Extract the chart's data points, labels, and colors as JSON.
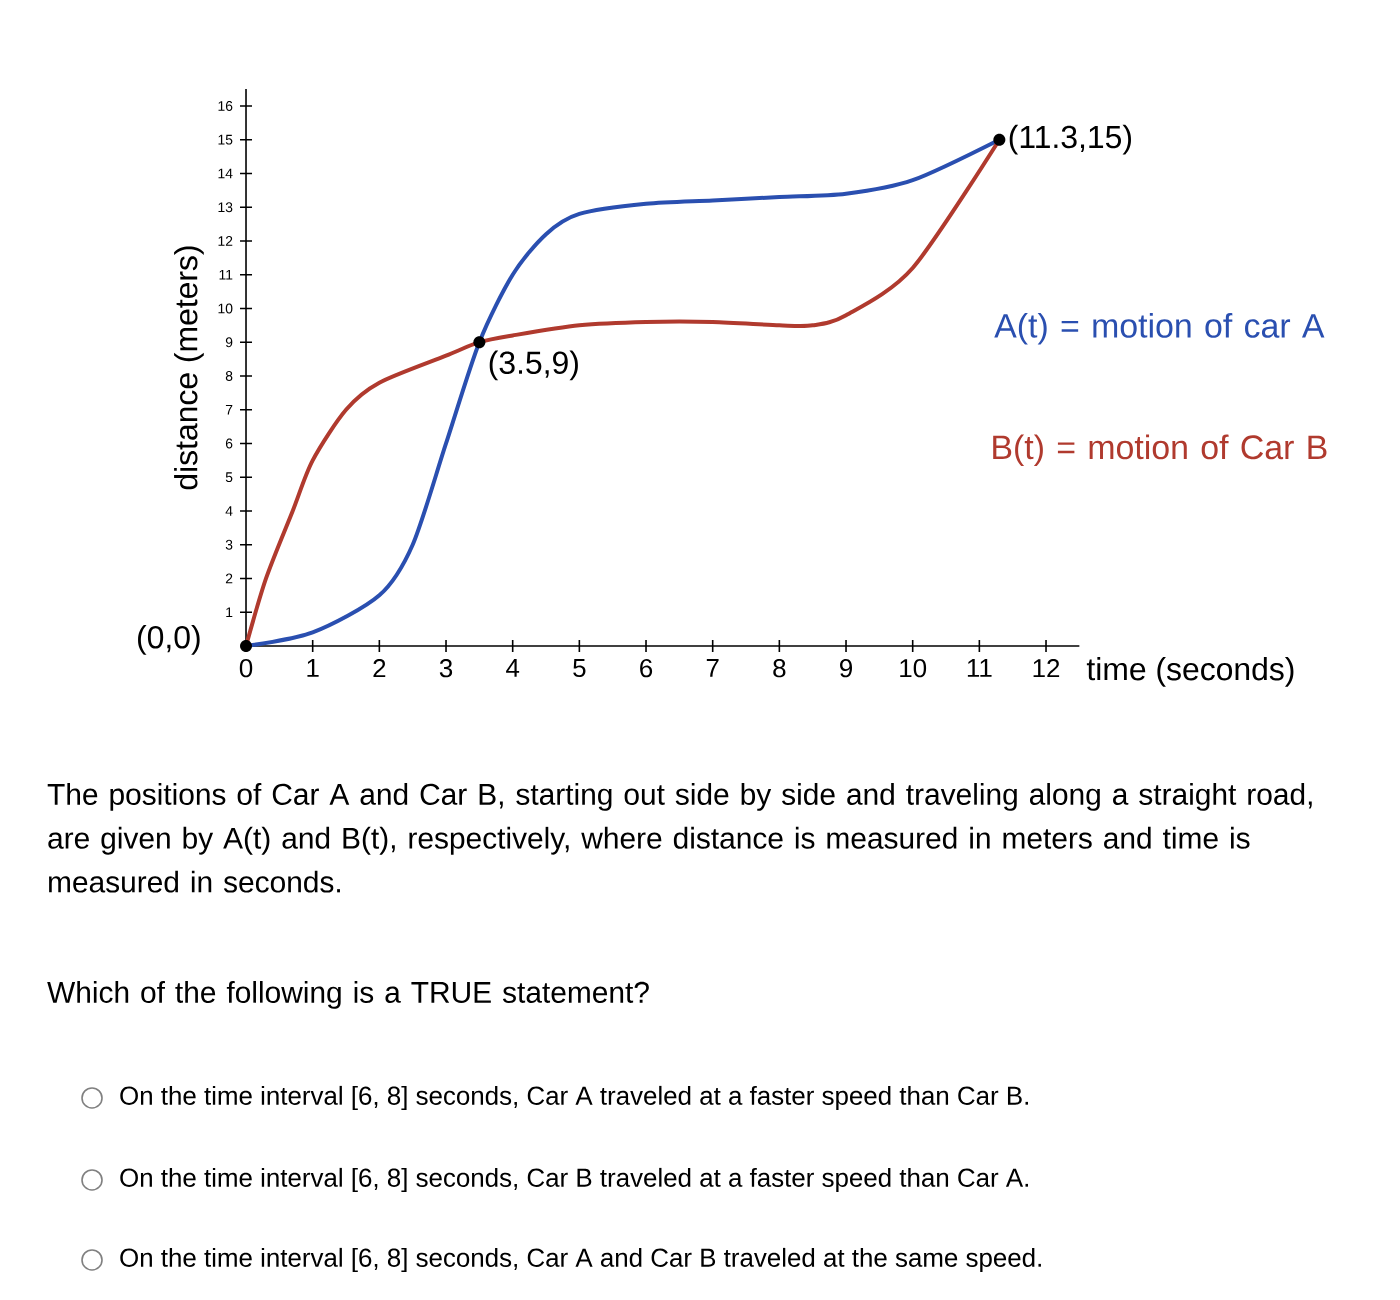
{
  "chart_data": {
    "type": "line",
    "xlabel": "time (seconds)",
    "ylabel": "distance (meters)",
    "xlim": [
      0,
      12.5
    ],
    "ylim": [
      0,
      16.5
    ],
    "xticks": [
      0,
      1,
      2,
      3,
      4,
      5,
      6,
      7,
      8,
      9,
      10,
      11,
      12
    ],
    "yticks": [
      1,
      2,
      3,
      4,
      5,
      6,
      7,
      8,
      9,
      10,
      11,
      12,
      13,
      14,
      15,
      16
    ],
    "marker": "none",
    "series": [
      {
        "name": "A(t) = motion of car A",
        "color": "#2a4fb0",
        "x": [
          0,
          1,
          2,
          2.5,
          3,
          3.5,
          4,
          4.5,
          5,
          6,
          7,
          8,
          9,
          10,
          11.3
        ],
        "values": [
          0,
          0.4,
          1.5,
          3,
          6,
          9,
          11,
          12.2,
          12.8,
          13.1,
          13.2,
          13.3,
          13.4,
          13.8,
          15
        ]
      },
      {
        "name": "B(t) = motion of Car B",
        "color": "#b03a2e",
        "x": [
          0,
          0.3,
          0.7,
          1,
          1.5,
          2,
          3,
          3.5,
          4,
          5,
          6,
          7,
          8,
          8.5,
          9,
          10,
          11.3
        ],
        "values": [
          0,
          2,
          4,
          5.5,
          7,
          7.8,
          8.6,
          9,
          9.2,
          9.5,
          9.6,
          9.6,
          9.5,
          9.5,
          9.8,
          11.2,
          15
        ]
      }
    ],
    "annotations": [
      {
        "text": "(0,0)",
        "x": 0,
        "y": 0
      },
      {
        "text": "(3.5,9)",
        "x": 3.5,
        "y": 9
      },
      {
        "text": "(11.3,15)",
        "x": 11.3,
        "y": 15
      },
      "The positions of Car A and Car B, starting out side by side and traveling along a straight road, are given by A(t) and B(t), respectively, where distance is measured in meters and time is measured in seconds.",
      "Which of the following is a TRUE statement?",
      "On the time interval [6, 8] seconds, Car A traveled at a faster speed than Car B.",
      "On the time interval [6, 8] seconds, Car B traveled at a faster speed than Car A.",
      "On the time interval [6, 8] seconds, Car A and Car B traveled at the same speed."
    ]
  }
}
